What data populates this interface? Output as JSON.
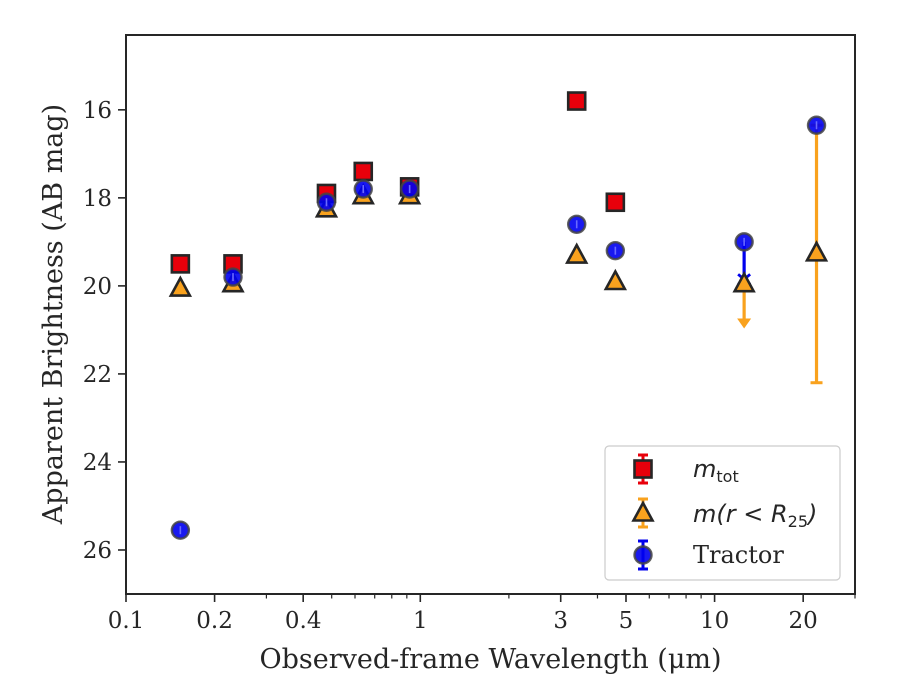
{
  "chart_data": {
    "type": "scatter",
    "xlabel": "Observed-frame Wavelength (μm)",
    "ylabel": "Apparent Brightness (AB mag)",
    "xscale": "log",
    "y_inverted": true,
    "xlim": [
      0.1,
      30
    ],
    "ylim": [
      27,
      14.3
    ],
    "x_ticks": [
      {
        "value": 0.1,
        "label": "0.1"
      },
      {
        "value": 0.2,
        "label": "0.2"
      },
      {
        "value": 0.4,
        "label": "0.4"
      },
      {
        "value": 1,
        "label": "1"
      },
      {
        "value": 3,
        "label": "3"
      },
      {
        "value": 5,
        "label": "5"
      },
      {
        "value": 10,
        "label": "10"
      },
      {
        "value": 20,
        "label": "20"
      }
    ],
    "y_ticks": [
      {
        "value": 16,
        "label": "16"
      },
      {
        "value": 18,
        "label": "18"
      },
      {
        "value": 20,
        "label": "20"
      },
      {
        "value": 22,
        "label": "22"
      },
      {
        "value": 24,
        "label": "24"
      },
      {
        "value": 26,
        "label": "26"
      }
    ],
    "legend_position": "lower-right",
    "legend": {
      "mtot_base": "m",
      "mtot_sub": "tot",
      "mr_prefix": "m(r < R",
      "mr_sub": "25",
      "mr_suffix": ")",
      "tractor": "Tractor"
    },
    "series": [
      {
        "key": "mtot",
        "marker": "square",
        "color": "#e8000b",
        "points": [
          {
            "x": 0.153,
            "y": 19.5
          },
          {
            "x": 0.231,
            "y": 19.5
          },
          {
            "x": 0.48,
            "y": 17.9
          },
          {
            "x": 0.64,
            "y": 17.4
          },
          {
            "x": 0.92,
            "y": 17.75
          },
          {
            "x": 3.4,
            "y": 15.8
          },
          {
            "x": 4.6,
            "y": 18.1
          }
        ]
      },
      {
        "key": "mr25",
        "marker": "triangle",
        "color": "#f9a21e",
        "points": [
          {
            "x": 0.153,
            "y": 20.05
          },
          {
            "x": 0.231,
            "y": 19.95
          },
          {
            "x": 0.48,
            "y": 18.25
          },
          {
            "x": 0.64,
            "y": 17.95
          },
          {
            "x": 0.92,
            "y": 17.95
          },
          {
            "x": 3.4,
            "y": 19.3
          },
          {
            "x": 4.6,
            "y": 19.9
          },
          {
            "x": 12.6,
            "y": 19.95,
            "upper_limit_to": 20.9
          },
          {
            "x": 22.2,
            "y": 19.25,
            "err_low": 16.35,
            "err_high": 22.2
          }
        ]
      },
      {
        "key": "tractor",
        "marker": "circle",
        "color": "#0000ee",
        "points": [
          {
            "x": 0.153,
            "y": 25.55
          },
          {
            "x": 0.231,
            "y": 19.8
          },
          {
            "x": 0.48,
            "y": 18.1
          },
          {
            "x": 0.64,
            "y": 17.8
          },
          {
            "x": 0.92,
            "y": 17.8
          },
          {
            "x": 3.4,
            "y": 18.6
          },
          {
            "x": 4.6,
            "y": 19.2
          },
          {
            "x": 12.6,
            "y": 19.0,
            "err_high": 19.85
          },
          {
            "x": 22.2,
            "y": 16.35
          }
        ]
      }
    ]
  }
}
